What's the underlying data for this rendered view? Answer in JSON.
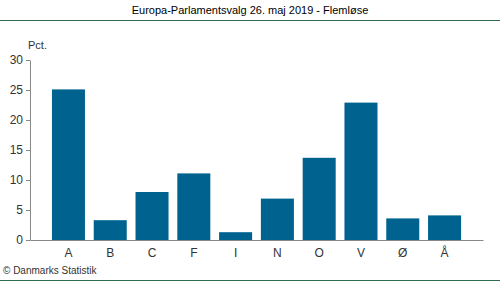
{
  "chart_data": {
    "type": "bar",
    "title": "Europa-Parlamentsvalg 26. maj 2019 - Flemløse",
    "y_label": "Pct.",
    "source": "© Danmarks Statistik",
    "categories": [
      "A",
      "B",
      "C",
      "F",
      "I",
      "N",
      "O",
      "V",
      "Ø",
      "Å"
    ],
    "values": [
      25.1,
      3.3,
      8.0,
      11.1,
      1.3,
      6.9,
      13.7,
      22.9,
      3.6,
      4.1
    ],
    "color": "#00628f",
    "ylim": [
      0,
      30
    ],
    "yticks": [
      0,
      5,
      10,
      15,
      20,
      25,
      30
    ],
    "grid": false
  }
}
